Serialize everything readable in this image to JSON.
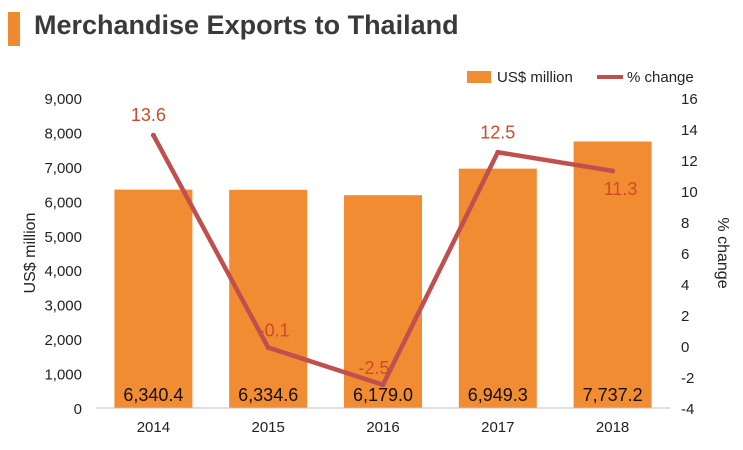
{
  "title": "Merchandise Exports to Thailand",
  "colors": {
    "accent": "#f08a31",
    "bar": "#f28c33",
    "line": "#c0504d",
    "line_label": "#d04a2a"
  },
  "chart_data": {
    "type": "bar",
    "title": "Merchandise Exports to Thailand",
    "categories": [
      "2014",
      "2015",
      "2016",
      "2017",
      "2018"
    ],
    "series": [
      {
        "name": "US$ million",
        "type": "bar",
        "axis": "left",
        "values": [
          6340.4,
          6334.6,
          6179.0,
          6949.3,
          7737.2
        ],
        "labels": [
          "6,340.4",
          "6,334.6",
          "6,179.0",
          "6,949.3",
          "7,737.2"
        ]
      },
      {
        "name": "% change",
        "type": "line",
        "axis": "right",
        "values": [
          13.6,
          -0.1,
          -2.5,
          12.5,
          11.3
        ],
        "labels": [
          "13.6",
          "-0.1",
          "-2.5",
          "12.5",
          "11.3"
        ]
      }
    ],
    "ylabel": "US$ million",
    "y2label": "% change",
    "ylim": [
      0,
      9000
    ],
    "y2lim": [
      -4,
      16
    ],
    "yticks": [
      "0",
      "1,000",
      "2,000",
      "3,000",
      "4,000",
      "5,000",
      "6,000",
      "7,000",
      "8,000",
      "9,000"
    ],
    "y2ticks": [
      "-4",
      "-2",
      "0",
      "2",
      "4",
      "6",
      "8",
      "10",
      "12",
      "14",
      "16"
    ],
    "legend": "top-right",
    "grid": false
  }
}
